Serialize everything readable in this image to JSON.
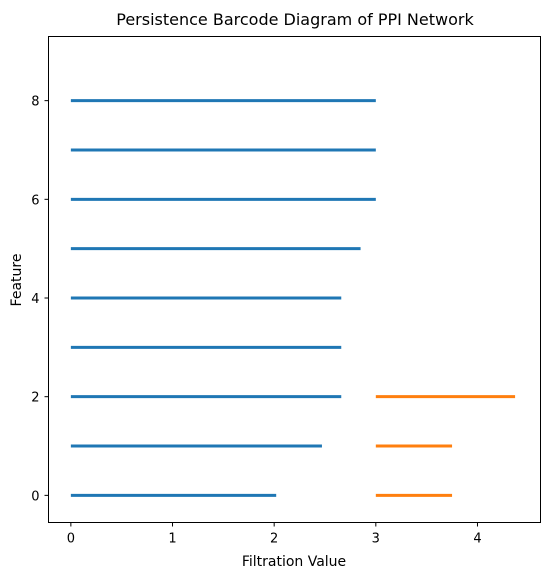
{
  "chart_data": {
    "type": "barcode",
    "title": "Persistence Barcode Diagram of PPI Network",
    "xlabel": "Filtration Value",
    "ylabel": "Feature",
    "xlim": [
      -0.22,
      4.62
    ],
    "ylim": [
      -0.55,
      9.3
    ],
    "xticks": [
      0,
      1,
      2,
      3,
      4
    ],
    "yticks": [
      0,
      2,
      4,
      6,
      8
    ],
    "grid": false,
    "series": [
      {
        "color": "#1f77b4",
        "bars": [
          {
            "y": 0,
            "start": 0,
            "end": 2.02
          },
          {
            "y": 1,
            "start": 0,
            "end": 2.47
          },
          {
            "y": 2,
            "start": 0,
            "end": 2.66
          },
          {
            "y": 3,
            "start": 0,
            "end": 2.66
          },
          {
            "y": 4,
            "start": 0,
            "end": 2.66
          },
          {
            "y": 5,
            "start": 0,
            "end": 2.85
          },
          {
            "y": 6,
            "start": 0,
            "end": 3.0
          },
          {
            "y": 7,
            "start": 0,
            "end": 3.0
          },
          {
            "y": 8,
            "start": 0,
            "end": 3.0
          }
        ]
      },
      {
        "color": "#ff7f0e",
        "bars": [
          {
            "y": 0,
            "start": 3.0,
            "end": 3.75
          },
          {
            "y": 1,
            "start": 3.0,
            "end": 3.75
          },
          {
            "y": 2,
            "start": 3.0,
            "end": 4.37
          }
        ]
      }
    ]
  }
}
